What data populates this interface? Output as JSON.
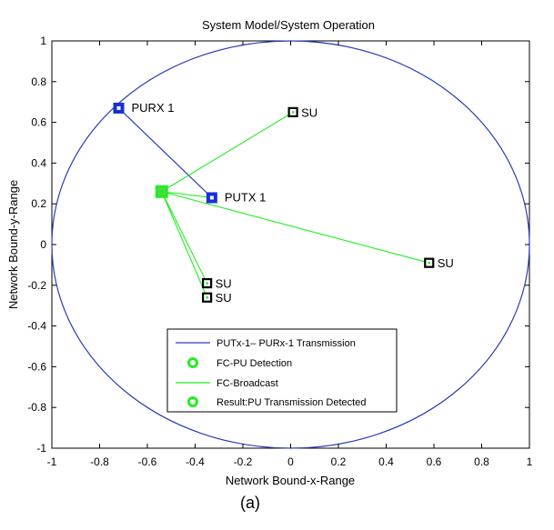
{
  "chart_data": {
    "type": "scatter",
    "title": "System Model/System Operation",
    "xlabel": "Network Bound-x-Range",
    "ylabel": "Network Bound-y-Range",
    "xlim": [
      -1,
      1
    ],
    "ylim": [
      -1,
      1
    ],
    "xticks": [
      "-1",
      "-0.8",
      "-0.6",
      "-0.4",
      "-0.2",
      "0",
      "0.2",
      "0.4",
      "0.6",
      "0.8",
      "1"
    ],
    "yticks": [
      "1",
      "0.8",
      "0.6",
      "0.4",
      "0.2",
      "0",
      "-0.2",
      "-0.4",
      "-0.6",
      "-0.8",
      "-1"
    ],
    "grid": false,
    "boundary": {
      "type": "circle",
      "center": [
        0,
        0
      ],
      "radius": 1,
      "color": "#2a3db5"
    },
    "fusion_center": {
      "x": -0.54,
      "y": 0.26,
      "color": "#22ee22"
    },
    "primary_users": [
      {
        "label": "PURX 1",
        "x": -0.72,
        "y": 0.67
      },
      {
        "label": "PUTX 1",
        "x": -0.33,
        "y": 0.23
      }
    ],
    "secondary_users": [
      {
        "label": "SU",
        "x": 0.01,
        "y": 0.65
      },
      {
        "label": "SU",
        "x": 0.58,
        "y": -0.09
      },
      {
        "label": "SU",
        "x": -0.35,
        "y": -0.19
      },
      {
        "label": "SU",
        "x": -0.35,
        "y": -0.26
      }
    ],
    "pu_link": {
      "from": [
        -0.72,
        0.67
      ],
      "to": [
        -0.33,
        0.23
      ],
      "color": "#2a3db5"
    },
    "broadcast_links": [
      {
        "from": [
          -0.54,
          0.26
        ],
        "to": [
          0.01,
          0.65
        ]
      },
      {
        "from": [
          -0.54,
          0.26
        ],
        "to": [
          0.58,
          -0.09
        ]
      },
      {
        "from": [
          -0.54,
          0.26
        ],
        "to": [
          -0.35,
          -0.19
        ]
      },
      {
        "from": [
          -0.54,
          0.26
        ],
        "to": [
          -0.35,
          -0.26
        ]
      },
      {
        "from": [
          -0.54,
          0.26
        ],
        "to": [
          -0.33,
          0.23
        ]
      }
    ],
    "legend": {
      "placement": "bottom-center",
      "entries": [
        {
          "label": "PUTx-1– PURx-1 Transmission",
          "kind": "line",
          "color": "#2a3db5"
        },
        {
          "label": "FC-PU Detection",
          "kind": "marker",
          "color": "#22ee22"
        },
        {
          "label": "FC-Broadcast",
          "kind": "line",
          "color": "#22ee22"
        },
        {
          "label": "Result:PU Transmission Detected",
          "kind": "marker",
          "color": "#22ee22"
        }
      ]
    },
    "colors": {
      "pu_marker": "#1a2fd8",
      "su_marker": "#000000",
      "broadcast": "#22ee22"
    }
  },
  "caption": "(a)"
}
